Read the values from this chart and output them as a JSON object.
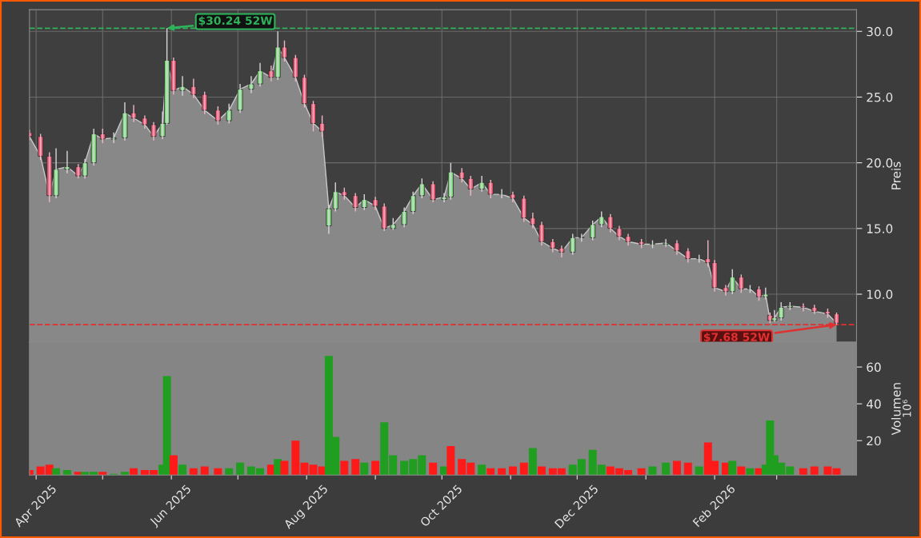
{
  "chart_data": [
    {
      "type": "candlestick",
      "ylabel": "Preis",
      "xlim": [
        "2025-03-29",
        "2026-04-06"
      ],
      "ylim": [
        6.35,
        31.65
      ],
      "yticks": [
        {
          "value": 10,
          "label": "10.0"
        },
        {
          "value": 15,
          "label": "15.0"
        },
        {
          "value": 20,
          "label": "20.0"
        },
        {
          "value": 25,
          "label": "25.0"
        },
        {
          "value": 30,
          "label": "30.0"
        }
      ],
      "xticks": [
        {
          "value": "2025-04-01",
          "label": null
        },
        {
          "value": "2025-05-01",
          "label": null
        },
        {
          "value": "2025-06-01",
          "label": null
        },
        {
          "value": "2025-07-01",
          "label": null
        },
        {
          "value": "2025-08-01",
          "label": null
        },
        {
          "value": "2025-09-01",
          "label": null
        },
        {
          "value": "2025-10-01",
          "label": null
        },
        {
          "value": "2025-11-01",
          "label": null
        },
        {
          "value": "2025-12-01",
          "label": null
        },
        {
          "value": "2026-01-01",
          "label": null
        },
        {
          "value": "2026-02-01",
          "label": null
        },
        {
          "value": "2026-03-01",
          "label": null
        }
      ],
      "tick_labels": "y",
      "grid": true,
      "ref_lines": [
        {
          "axis": "y",
          "value": 30.24,
          "color": "#2fb35a",
          "line_style": "dashed"
        },
        {
          "axis": "y",
          "value": 7.68,
          "color": "#e03030",
          "line_style": "dashed"
        }
      ],
      "annotations": [
        {
          "text": "$30.24 52W",
          "x": "2025-05-30",
          "y": 30.24
        },
        {
          "text": "$7.68 52W",
          "x": "2026-03-28",
          "y": 7.68
        }
      ],
      "x": [
        "2025-03-29",
        "2025-04-03",
        "2025-04-07",
        "2025-04-10",
        "2025-04-15",
        "2025-04-20",
        "2025-04-23",
        "2025-04-27",
        "2025-05-01",
        "2025-05-06",
        "2025-05-11",
        "2025-05-15",
        "2025-05-20",
        "2025-05-24",
        "2025-05-28",
        "2025-05-30",
        "2025-06-02",
        "2025-06-06",
        "2025-06-11",
        "2025-06-16",
        "2025-06-22",
        "2025-06-27",
        "2025-07-02",
        "2025-07-07",
        "2025-07-11",
        "2025-07-16",
        "2025-07-19",
        "2025-07-22",
        "2025-07-27",
        "2025-07-31",
        "2025-08-04",
        "2025-08-08",
        "2025-08-11",
        "2025-08-14",
        "2025-08-18",
        "2025-08-23",
        "2025-08-27",
        "2025-09-01",
        "2025-09-05",
        "2025-09-09",
        "2025-09-14",
        "2025-09-18",
        "2025-09-22",
        "2025-09-27",
        "2025-10-02",
        "2025-10-05",
        "2025-10-10",
        "2025-10-14",
        "2025-10-19",
        "2025-10-23",
        "2025-10-28",
        "2025-11-02",
        "2025-11-07",
        "2025-11-11",
        "2025-11-15",
        "2025-11-20",
        "2025-11-24",
        "2025-11-29",
        "2025-12-03",
        "2025-12-08",
        "2025-12-12",
        "2025-12-16",
        "2025-12-20",
        "2025-12-24",
        "2025-12-30",
        "2026-01-04",
        "2026-01-10",
        "2026-01-15",
        "2026-01-20",
        "2026-01-25",
        "2026-01-29",
        "2026-02-01",
        "2026-02-06",
        "2026-02-09",
        "2026-02-13",
        "2026-02-17",
        "2026-02-21",
        "2026-02-24",
        "2026-02-26",
        "2026-02-28",
        "2026-03-03",
        "2026-03-07",
        "2026-03-13",
        "2026-03-18",
        "2026-03-24",
        "2026-03-28"
      ],
      "ohlc": [
        [
          22.3,
          22.5,
          21.7,
          22.0
        ],
        [
          22.0,
          22.2,
          20.2,
          20.5
        ],
        [
          20.5,
          20.8,
          17.0,
          17.5
        ],
        [
          17.5,
          21.1,
          17.3,
          19.5
        ],
        [
          19.5,
          20.9,
          19.2,
          19.7
        ],
        [
          19.7,
          19.9,
          18.8,
          19.0
        ],
        [
          19.0,
          20.3,
          18.8,
          20.0
        ],
        [
          20.0,
          22.6,
          19.8,
          22.2
        ],
        [
          22.2,
          22.6,
          21.5,
          21.8
        ],
        [
          21.8,
          22.3,
          21.5,
          21.9
        ],
        [
          21.9,
          24.6,
          21.7,
          23.8
        ],
        [
          23.8,
          24.4,
          23.1,
          23.4
        ],
        [
          23.4,
          23.6,
          22.6,
          22.9
        ],
        [
          22.9,
          23.1,
          21.7,
          22.0
        ],
        [
          22.0,
          23.9,
          21.8,
          23.0
        ],
        [
          23.0,
          30.24,
          22.9,
          27.8
        ],
        [
          27.8,
          28.0,
          25.2,
          25.5
        ],
        [
          25.5,
          26.6,
          25.1,
          25.8
        ],
        [
          25.8,
          26.4,
          24.9,
          25.2
        ],
        [
          25.2,
          25.4,
          23.7,
          24.0
        ],
        [
          24.0,
          24.3,
          22.9,
          23.2
        ],
        [
          23.2,
          24.5,
          23.0,
          24.0
        ],
        [
          24.0,
          26.0,
          23.8,
          25.6
        ],
        [
          25.6,
          26.6,
          25.3,
          26.0
        ],
        [
          26.0,
          27.6,
          25.8,
          27.0
        ],
        [
          27.0,
          27.4,
          26.2,
          26.5
        ],
        [
          26.5,
          30.0,
          26.3,
          28.8
        ],
        [
          28.8,
          29.3,
          27.7,
          28.0
        ],
        [
          28.0,
          28.2,
          26.2,
          26.5
        ],
        [
          26.5,
          26.7,
          24.2,
          24.5
        ],
        [
          24.5,
          24.7,
          22.4,
          23.0
        ],
        [
          23.0,
          23.6,
          22.0,
          22.4
        ],
        [
          15.2,
          16.8,
          14.6,
          16.5
        ],
        [
          16.5,
          18.5,
          16.3,
          17.8
        ],
        [
          17.8,
          18.1,
          17.2,
          17.5
        ],
        [
          17.5,
          17.7,
          16.3,
          16.6
        ],
        [
          16.6,
          17.6,
          16.4,
          17.2
        ],
        [
          17.2,
          17.4,
          16.4,
          16.7
        ],
        [
          16.7,
          16.9,
          14.8,
          15.0
        ],
        [
          15.0,
          15.8,
          14.9,
          15.3
        ],
        [
          15.3,
          16.6,
          15.1,
          16.3
        ],
        [
          16.3,
          17.8,
          16.1,
          17.5
        ],
        [
          17.5,
          18.8,
          17.3,
          18.4
        ],
        [
          18.4,
          18.6,
          17.0,
          17.2
        ],
        [
          17.2,
          17.7,
          17.0,
          17.4
        ],
        [
          17.4,
          20.0,
          17.2,
          19.3
        ],
        [
          19.3,
          19.6,
          18.5,
          18.8
        ],
        [
          18.8,
          19.0,
          17.5,
          18.0
        ],
        [
          18.0,
          19.0,
          17.8,
          18.5
        ],
        [
          18.5,
          18.7,
          17.3,
          17.6
        ],
        [
          17.6,
          18.0,
          17.3,
          17.6
        ],
        [
          17.6,
          17.8,
          17.0,
          17.3
        ],
        [
          17.3,
          17.5,
          15.5,
          15.8
        ],
        [
          15.8,
          16.2,
          15.0,
          15.3
        ],
        [
          15.3,
          15.5,
          13.7,
          14.0
        ],
        [
          14.0,
          14.2,
          13.2,
          13.5
        ],
        [
          13.5,
          13.7,
          12.8,
          13.2
        ],
        [
          13.2,
          14.6,
          13.0,
          14.3
        ],
        [
          14.3,
          14.6,
          14.0,
          14.3
        ],
        [
          14.3,
          15.6,
          14.1,
          15.3
        ],
        [
          15.3,
          16.3,
          15.1,
          15.9
        ],
        [
          15.9,
          16.1,
          14.7,
          15.0
        ],
        [
          15.0,
          15.2,
          14.1,
          14.4
        ],
        [
          14.4,
          14.6,
          13.7,
          14.0
        ],
        [
          14.0,
          14.2,
          13.5,
          13.8
        ],
        [
          13.8,
          14.1,
          13.5,
          13.8
        ],
        [
          13.8,
          14.2,
          13.6,
          13.9
        ],
        [
          13.9,
          14.1,
          13.0,
          13.3
        ],
        [
          13.3,
          13.5,
          12.4,
          12.7
        ],
        [
          12.7,
          13.0,
          12.4,
          12.7
        ],
        [
          12.7,
          14.1,
          12.1,
          12.4
        ],
        [
          12.4,
          12.6,
          10.2,
          10.5
        ],
        [
          10.5,
          10.7,
          9.9,
          10.2
        ],
        [
          10.2,
          11.9,
          10.0,
          11.3
        ],
        [
          11.3,
          11.5,
          10.1,
          10.4
        ],
        [
          10.4,
          10.7,
          10.1,
          10.4
        ],
        [
          10.4,
          10.6,
          9.5,
          9.8
        ],
        [
          9.8,
          10.5,
          9.6,
          10.0
        ],
        [
          8.4,
          8.6,
          7.8,
          8.0
        ],
        [
          8.0,
          8.8,
          7.9,
          8.2
        ],
        [
          8.2,
          9.4,
          8.0,
          9.0
        ],
        [
          9.0,
          9.4,
          8.8,
          9.1
        ],
        [
          9.1,
          9.3,
          8.7,
          9.0
        ],
        [
          9.0,
          9.2,
          8.5,
          8.7
        ],
        [
          8.7,
          8.9,
          8.2,
          8.5
        ],
        [
          8.5,
          8.6,
          7.68,
          7.8
        ]
      ],
      "series": [
        {
          "type": "area",
          "color": "#888888",
          "values": [
            22.0,
            20.5,
            17.5,
            19.5,
            19.7,
            19.0,
            20.0,
            22.2,
            21.8,
            21.9,
            23.8,
            23.4,
            22.9,
            22.0,
            23.0,
            27.8,
            25.5,
            25.8,
            25.2,
            24.0,
            23.2,
            24.0,
            25.6,
            26.0,
            27.0,
            26.5,
            28.8,
            28.0,
            26.5,
            24.5,
            23.0,
            22.4,
            16.5,
            17.8,
            17.5,
            16.6,
            17.2,
            16.7,
            15.0,
            15.3,
            16.3,
            17.5,
            18.4,
            17.2,
            17.4,
            19.3,
            18.8,
            18.0,
            18.5,
            17.6,
            17.6,
            17.3,
            15.8,
            15.3,
            14.0,
            13.5,
            13.2,
            14.3,
            14.3,
            15.3,
            15.9,
            15.0,
            14.4,
            14.0,
            13.8,
            13.8,
            13.9,
            13.3,
            12.7,
            12.7,
            12.4,
            10.5,
            10.2,
            11.3,
            10.4,
            10.4,
            9.8,
            10.0,
            8.0,
            8.2,
            9.0,
            9.1,
            9.0,
            8.7,
            8.5,
            7.8
          ]
        }
      ]
    },
    {
      "type": "bar",
      "ylabel": "Volumen",
      "annotations": [
        "10⁶"
      ],
      "xlim": [
        "2025-03-29",
        "2026-04-06"
      ],
      "ylim": [
        1.3,
        73.5
      ],
      "yticks": [
        20,
        40,
        60
      ],
      "xticks": [
        {
          "value": "2025-04-01",
          "label": "Apr 2025"
        },
        {
          "value": "2025-05-01",
          "label": null
        },
        {
          "value": "2025-06-01",
          "label": "Jun 2025"
        },
        {
          "value": "2025-07-01",
          "label": null
        },
        {
          "value": "2025-08-01",
          "label": "Aug 2025"
        },
        {
          "value": "2025-09-01",
          "label": null
        },
        {
          "value": "2025-10-01",
          "label": "Oct 2025"
        },
        {
          "value": "2025-11-01",
          "label": null
        },
        {
          "value": "2025-12-01",
          "label": "Dec 2025"
        },
        {
          "value": "2026-01-01",
          "label": null
        },
        {
          "value": "2026-02-01",
          "label": "Feb 2026"
        },
        {
          "value": "2026-03-01",
          "label": null
        }
      ],
      "x": [
        "2025-03-29",
        "2025-04-03",
        "2025-04-07",
        "2025-04-10",
        "2025-04-15",
        "2025-04-20",
        "2025-04-23",
        "2025-04-27",
        "2025-05-01",
        "2025-05-06",
        "2025-05-11",
        "2025-05-15",
        "2025-05-20",
        "2025-05-24",
        "2025-05-28",
        "2025-05-30",
        "2025-06-02",
        "2025-06-06",
        "2025-06-11",
        "2025-06-16",
        "2025-06-22",
        "2025-06-27",
        "2025-07-02",
        "2025-07-07",
        "2025-07-11",
        "2025-07-16",
        "2025-07-19",
        "2025-07-22",
        "2025-07-27",
        "2025-07-31",
        "2025-08-04",
        "2025-08-08",
        "2025-08-11",
        "2025-08-14",
        "2025-08-18",
        "2025-08-23",
        "2025-08-27",
        "2025-09-01",
        "2025-09-05",
        "2025-09-09",
        "2025-09-14",
        "2025-09-18",
        "2025-09-22",
        "2025-09-27",
        "2025-10-02",
        "2025-10-05",
        "2025-10-10",
        "2025-10-14",
        "2025-10-19",
        "2025-10-23",
        "2025-10-28",
        "2025-11-02",
        "2025-11-07",
        "2025-11-11",
        "2025-11-15",
        "2025-11-20",
        "2025-11-24",
        "2025-11-29",
        "2025-12-03",
        "2025-12-08",
        "2025-12-12",
        "2025-12-16",
        "2025-12-20",
        "2025-12-24",
        "2025-12-30",
        "2026-01-04",
        "2026-01-10",
        "2026-01-15",
        "2026-01-20",
        "2026-01-25",
        "2026-01-29",
        "2026-02-01",
        "2026-02-06",
        "2026-02-09",
        "2026-02-13",
        "2026-02-17",
        "2026-02-21",
        "2026-02-24",
        "2026-02-26",
        "2026-02-28",
        "2026-03-03",
        "2026-03-07",
        "2026-03-13",
        "2026-03-18",
        "2026-03-24",
        "2026-03-28"
      ],
      "values": [
        4,
        6,
        7,
        5,
        4,
        3,
        3,
        3,
        3,
        2,
        3,
        5,
        4,
        4,
        7,
        55,
        12,
        7,
        5,
        6,
        5,
        5,
        8,
        6,
        5,
        7,
        10,
        9,
        20,
        8,
        7,
        6,
        66,
        22,
        9,
        10,
        8,
        9,
        30,
        12,
        9,
        10,
        12,
        8,
        6,
        17,
        10,
        8,
        7,
        5,
        5,
        6,
        8,
        16,
        6,
        5,
        5,
        7,
        10,
        15,
        7,
        6,
        5,
        4,
        5,
        6,
        8,
        9,
        8,
        6,
        19,
        9,
        8,
        9,
        6,
        5,
        5,
        7,
        31,
        12,
        8,
        6,
        5,
        6,
        6,
        5
      ],
      "colors": [
        "#ff1a1a",
        "#ff1a1a",
        "#ff1a1a",
        "#1f9e1f",
        "#1f9e1f",
        "#ff1a1a",
        "#1f9e1f",
        "#1f9e1f",
        "#ff1a1a",
        "#1f9e1f",
        "#1f9e1f",
        "#ff1a1a",
        "#ff1a1a",
        "#ff1a1a",
        "#1f9e1f",
        "#1f9e1f",
        "#ff1a1a",
        "#1f9e1f",
        "#ff1a1a",
        "#ff1a1a",
        "#ff1a1a",
        "#1f9e1f",
        "#1f9e1f",
        "#1f9e1f",
        "#1f9e1f",
        "#ff1a1a",
        "#1f9e1f",
        "#ff1a1a",
        "#ff1a1a",
        "#ff1a1a",
        "#ff1a1a",
        "#ff1a1a",
        "#1f9e1f",
        "#1f9e1f",
        "#ff1a1a",
        "#ff1a1a",
        "#1f9e1f",
        "#ff1a1a",
        "#1f9e1f",
        "#1f9e1f",
        "#1f9e1f",
        "#1f9e1f",
        "#1f9e1f",
        "#ff1a1a",
        "#1f9e1f",
        "#ff1a1a",
        "#ff1a1a",
        "#ff1a1a",
        "#1f9e1f",
        "#ff1a1a",
        "#ff1a1a",
        "#ff1a1a",
        "#ff1a1a",
        "#1f9e1f",
        "#ff1a1a",
        "#ff1a1a",
        "#ff1a1a",
        "#1f9e1f",
        "#1f9e1f",
        "#1f9e1f",
        "#1f9e1f",
        "#ff1a1a",
        "#ff1a1a",
        "#ff1a1a",
        "#ff1a1a",
        "#1f9e1f",
        "#1f9e1f",
        "#ff1a1a",
        "#ff1a1a",
        "#1f9e1f",
        "#ff1a1a",
        "#ff1a1a",
        "#ff1a1a",
        "#1f9e1f",
        "#ff1a1a",
        "#1f9e1f",
        "#ff1a1a",
        "#1f9e1f",
        "#1f9e1f",
        "#1f9e1f",
        "#1f9e1f",
        "#1f9e1f",
        "#ff1a1a",
        "#ff1a1a",
        "#ff1a1a",
        "#ff1a1a"
      ]
    }
  ]
}
